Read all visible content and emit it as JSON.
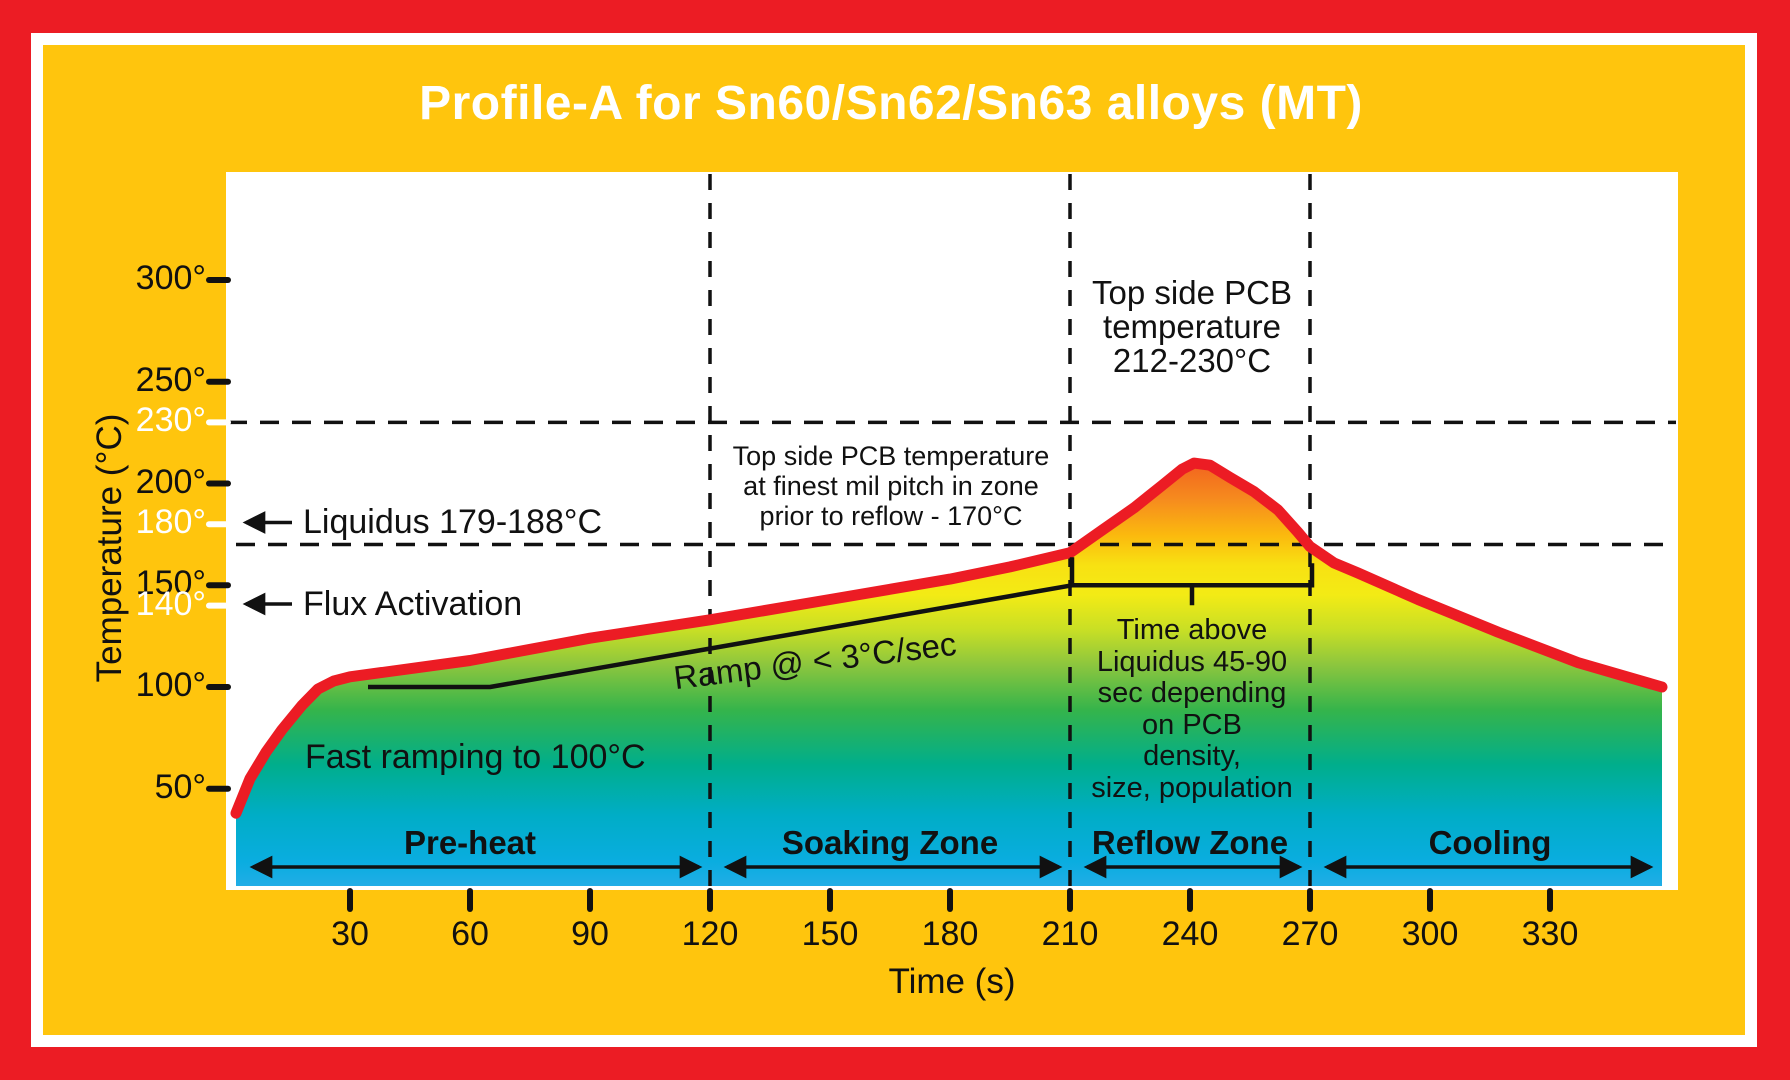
{
  "title": "Profile-A for Sn60/Sn62/Sn63 alloys (MT)",
  "colors": {
    "border_red": "#EC1C24",
    "background_yellow": "#FFC50D",
    "panel_white": "#FFFFFF",
    "curve_red": "#EC1C24",
    "line_black": "#111111",
    "highlight_tick_white": "#FFFFFF",
    "fill_gradient": [
      [
        462,
        "#F2621F"
      ],
      [
        500,
        "#F68C1E"
      ],
      [
        535,
        "#FBB90E"
      ],
      [
        565,
        "#F8E112"
      ],
      [
        595,
        "#F3EB15"
      ],
      [
        630,
        "#C8DF25"
      ],
      [
        665,
        "#8CC63E"
      ],
      [
        710,
        "#35B44B"
      ],
      [
        765,
        "#00AE8C"
      ],
      [
        815,
        "#00ADC6"
      ],
      [
        862,
        "#0AADE0"
      ],
      [
        890,
        "#25ADE7"
      ]
    ]
  },
  "y_axis": {
    "label": "Temperature (°C)",
    "ticks": [
      {
        "label": "300°",
        "value": 300,
        "highlight": false
      },
      {
        "label": "250°",
        "value": 250,
        "highlight": false
      },
      {
        "label": "230°",
        "value": 230,
        "highlight": true
      },
      {
        "label": "200°",
        "value": 200,
        "highlight": false
      },
      {
        "label": "180°",
        "value": 180,
        "highlight": true
      },
      {
        "label": "150°",
        "value": 150,
        "highlight": false
      },
      {
        "label": "140°",
        "value": 140,
        "highlight": true
      },
      {
        "label": "100°",
        "value": 100,
        "highlight": false
      },
      {
        "label": "50°",
        "value": 50,
        "highlight": false
      }
    ]
  },
  "x_axis": {
    "label": "Time (s)",
    "ticks": [
      {
        "label": "30",
        "value": 30
      },
      {
        "label": "60",
        "value": 60
      },
      {
        "label": "90",
        "value": 90
      },
      {
        "label": "120",
        "value": 120
      },
      {
        "label": "150",
        "value": 150
      },
      {
        "label": "180",
        "value": 180
      },
      {
        "label": "210",
        "value": 210
      },
      {
        "label": "240",
        "value": 240
      },
      {
        "label": "270",
        "value": 270
      },
      {
        "label": "300",
        "value": 300
      },
      {
        "label": "330",
        "value": 330
      }
    ]
  },
  "annotations": {
    "top_pcb": {
      "lines": [
        "Top side PCB",
        "temperature",
        "212-230°C"
      ]
    },
    "soak_pcb": {
      "lines": [
        "Top side PCB temperature",
        "at finest mil pitch in zone",
        "prior to reflow - 170°C"
      ]
    },
    "liquidus": {
      "label": "Liquidus 179-188°C"
    },
    "flux": {
      "label": "Flux Activation"
    },
    "ramp": {
      "label": "Ramp @ < 3°C/sec"
    },
    "fast_ramp": {
      "label": "Fast ramping to 100°C"
    },
    "time_above": {
      "lines": [
        "Time above",
        "Liquidus 45-90",
        "sec depending",
        "on PCB",
        "density,",
        "size, population"
      ]
    }
  },
  "chart_data": {
    "type": "area",
    "title": "Profile-A for Sn60/Sn62/Sn63 alloys (MT)",
    "xlabel": "Time (s)",
    "ylabel": "Temperature (°C)",
    "xlim": [
      0,
      362
    ],
    "ylim": [
      0,
      352
    ],
    "grid": false,
    "x_ticks_s": [
      30,
      60,
      90,
      120,
      150,
      180,
      210,
      240,
      270,
      300,
      330
    ],
    "y_ticks_c": [
      50,
      100,
      140,
      150,
      180,
      200,
      230,
      250,
      300
    ],
    "highlighted_y_ticks_c": [
      140,
      180,
      230
    ],
    "series": [
      {
        "name": "Top side PCB temperature profile (°C vs s)",
        "points": [
          [
            1.5,
            38
          ],
          [
            5,
            55
          ],
          [
            9,
            68
          ],
          [
            13,
            79
          ],
          [
            18,
            91
          ],
          [
            22,
            99
          ],
          [
            26,
            103
          ],
          [
            30,
            105
          ],
          [
            45,
            109
          ],
          [
            60,
            113
          ],
          [
            90,
            124
          ],
          [
            120,
            133
          ],
          [
            150,
            143
          ],
          [
            180,
            153
          ],
          [
            195,
            159
          ],
          [
            210,
            166
          ],
          [
            218,
            177
          ],
          [
            226,
            188
          ],
          [
            233,
            199
          ],
          [
            238,
            207
          ],
          [
            241,
            210
          ],
          [
            245,
            209
          ],
          [
            250,
            203
          ],
          [
            256,
            196
          ],
          [
            262,
            187
          ],
          [
            267,
            176
          ],
          [
            270,
            169
          ],
          [
            276,
            161
          ],
          [
            282,
            156
          ],
          [
            297,
            143
          ],
          [
            317,
            127
          ],
          [
            337,
            112
          ],
          [
            358,
            100
          ]
        ]
      }
    ],
    "ramp_reference_line": {
      "name": "Ramp @ < 3°C/sec inner reference line",
      "points": [
        [
          34.5,
          100
        ],
        [
          65,
          100
        ],
        [
          210.5,
          150
        ]
      ]
    },
    "time_above_liquidus_bracket": {
      "from_s": 210.5,
      "to_s": 270.5,
      "at_temp_c": 150
    },
    "dashed_h_lines_c": [
      230,
      170
    ],
    "dashed_v_lines_s": [
      120,
      210,
      270
    ],
    "zones": [
      {
        "label": "Pre-heat",
        "from_s": 0,
        "to_s": 120
      },
      {
        "label": "Soaking Zone",
        "from_s": 120,
        "to_s": 210
      },
      {
        "label": "Reflow Zone",
        "from_s": 210,
        "to_s": 270
      },
      {
        "label": "Cooling",
        "from_s": 270,
        "to_s": 360
      }
    ]
  }
}
